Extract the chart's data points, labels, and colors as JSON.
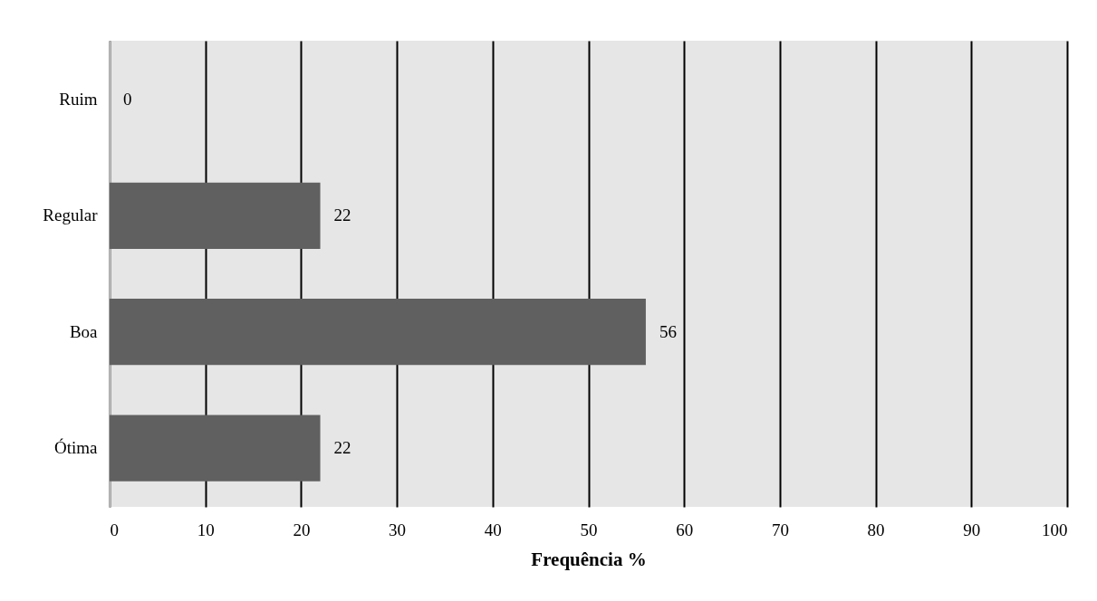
{
  "chart_data": {
    "type": "bar",
    "orientation": "horizontal",
    "xlabel": "Frequência %",
    "categories": [
      "Ruim",
      "Regular",
      "Boa",
      "Ótima"
    ],
    "values": [
      0,
      22,
      56,
      22
    ],
    "color": "#606060",
    "xlim": [
      0,
      100
    ],
    "xticks": [
      0,
      10,
      20,
      30,
      40,
      50,
      60,
      70,
      80,
      90,
      100
    ],
    "grid": "x",
    "data_labels": true
  }
}
